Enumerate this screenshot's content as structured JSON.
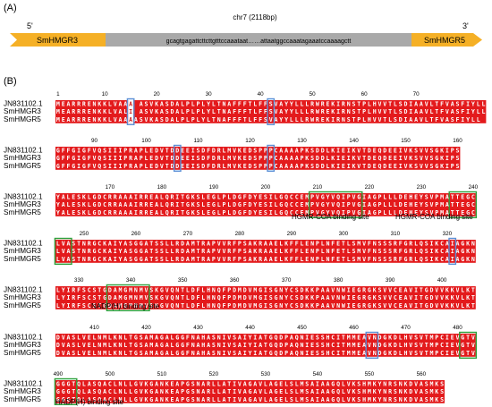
{
  "panel_a": {
    "label": "(A)",
    "five_prime": "5'",
    "three_prime": "3'",
    "gene_left": "SmHMGR3",
    "gene_right": "SmHMGR5",
    "chromosome": "chr7 (2118bp)",
    "sequence": "gcagtgagattcttcttgtttccaaataat……attaatggccaaatagaaatccaaaagctt",
    "colors": {
      "gene_arrow": "#f5b026",
      "spacer": "#a9a9a9"
    }
  },
  "panel_b": {
    "label": "(B)",
    "colors": {
      "conserved_bg": "#e31a1c",
      "conserved_text": "#ffffff",
      "variant_text": "#cc1a1a",
      "box_blue": "#5b8fd6",
      "box_green": "#2e9e3a"
    },
    "blocks": [
      {
        "ticks": [
          [
            1,
            1
          ],
          [
            10,
            10
          ],
          [
            20,
            20
          ],
          [
            30,
            30
          ],
          [
            40,
            40
          ],
          [
            50,
            50
          ],
          [
            60,
            60
          ],
          [
            70,
            70
          ]
        ],
        "names": [
          "JN831102.1",
          "SmHMGR3",
          "SmHMGR5"
        ],
        "seqs": [
          "MEARRRENKKLVAAA ASVKASDALPLPLYLTNAFFFTLFFSVAYYLLLRWREKIRNSTPLHVVTLSDIAAVLTFVASFIYLL",
          "MEARRRENKKLVALI ASVKASDALPLPLYLTNAFFFTLFFSVAYYLLLRWREKIRNSTPLHVVTLSDIAAVLTFVASFIYLL",
          "MEARRRENKKLVAAAASVKASDALPLPLYLTNAFFFTLFFSVAYYLLLRWREKIRNSTPLHVVTLSDIAAVLTFVASFIYLL"
        ],
        "variants": [
          14
        ],
        "blue": [
          [
            14,
            14
          ],
          [
            41,
            41
          ]
        ],
        "green": []
      },
      {
        "ticks": [
          [
            8,
            90
          ],
          [
            18,
            100
          ],
          [
            28,
            110
          ],
          [
            38,
            120
          ],
          [
            48,
            130
          ],
          [
            58,
            140
          ],
          [
            68,
            150
          ],
          [
            78,
            160
          ]
        ],
        "names": [
          "JN831102.1",
          "SmHMGR3",
          "SmHMGR5"
        ],
        "seqs": [
          "GFFGIGFVQSIIIPRAPLEDVTDDEEISDFDRLMVKEDSPPPCAAAAPKSDDLKIEIKVTDEQDEEIVKSVVSGKIPS",
          "GFFGIGFVQSIIIPRAPLEDVTDDEEISDFDRLMVKEDSPPPCAAAAPKSDDLKIEIKVTDEQDEEIVKSVVSGKIPS",
          "GFFGIGFVQSIIIPRAPLEDVTDDEEISDFDRLMVKEDSPPPCAAAAPKSDDLKIEIKVTDEQDEEIVKSVVSGKIPS"
        ],
        "variants": [],
        "blue": [
          [
            23,
            23
          ],
          [
            41,
            41
          ]
        ],
        "green": []
      },
      {
        "ticks": [
          [
            11,
            170
          ],
          [
            21,
            180
          ],
          [
            31,
            190
          ],
          [
            41,
            200
          ],
          [
            51,
            210
          ],
          [
            61,
            220
          ],
          [
            71,
            230
          ],
          [
            81,
            240
          ]
        ],
        "names": [
          "JN831102.1",
          "SmHMGR3",
          "SmHMGR5"
        ],
        "seqs": [
          "YALESKLGDCRRAAAIRREALQRITGKSLEGLPLDGFDYESILGQCCEMPVGYVQIPVGIAGPLLLDEHEYSVPMATTEGC",
          "YALESKLGDCRRAAAIRREALQRITGKSLEGLPLDGFDYESILGQCCEMPVGYVQIPVGIAGPLLLDEHEYSVPMATTEGC",
          "YALESKLGDCRRAAAIRREALQRITGKSLEGLPLDGFDYESILGQCCEMPVGYVQIPVGIAGPLLLDEHEYSVPMATTEGC"
        ],
        "variants": [],
        "blue": [],
        "green": [
          [
            49,
            58
          ],
          [
            76,
            80
          ]
        ]
      },
      {
        "ticks": [
          [
            6,
            250
          ],
          [
            16,
            260
          ],
          [
            26,
            270
          ],
          [
            36,
            280
          ],
          [
            46,
            290
          ],
          [
            56,
            300
          ],
          [
            66,
            310
          ],
          [
            76,
            320
          ]
        ],
        "names": [
          "JN831102.1",
          "SmHMGR3",
          "SmHMGR5"
        ],
        "seqs": [
          "LVASTNRGCKAIYASGGATSSLLRDAMTRAPVVRFPSAKRAAELKFFLENPLNFETLSMVFNSSSRFGRLQSIKCAIAGKN",
          "LVASTNRGCKAIYASGGATSSLLRDAMTRAPVVRFPSAKRAAELKFFLENPLNFETLSMVFNSSSRFGRLQSIKCAIAGKN",
          "LVASTNRGCKAIYASGGATSSLLRDAMTRAPVVRFPSAKRAAELKFFLENPLNFETLSMVFNSSSRFGRLQSIKCAIAGKN"
        ],
        "variants": [],
        "blue": [
          [
            76,
            76
          ]
        ],
        "green": [
          [
            0,
            2
          ]
        ]
      },
      {
        "ticks": [
          [
            5,
            330
          ],
          [
            15,
            340
          ],
          [
            25,
            350
          ],
          [
            35,
            360
          ],
          [
            45,
            370
          ],
          [
            55,
            380
          ],
          [
            65,
            390
          ],
          [
            75,
            400
          ]
        ],
        "names": [
          "JN831102.1",
          "SmHMGR3",
          "SmHMGR5"
        ],
        "seqs": [
          "LYIRFSCSTGDAMGMNMVSKGVQNTLDFLHNQFPDMDVMGISGNYCSDKKPAAVNWIEGRGKSVVCEAVITGDVVKKVLKT",
          "LYIRFSCSTGDAMGMNMVSKGVQNTLDFLHNQFPDMDVMGISGNYCSDKKPAAVNWIEGRGKSVVCEAVITGDVVKKVLKT",
          "LYIRFSCSTGDAMGMNMVSKGVQNTLDFLHNQFPDMDVMGISGNYCSDKKPAAVNWIEGRGKSVVCEAVITGDVVKKVLKT"
        ],
        "variants": [],
        "blue": [],
        "green": [
          [
            10,
            17
          ]
        ]
      },
      {
        "ticks": [
          [
            8,
            410
          ],
          [
            18,
            420
          ],
          [
            28,
            430
          ],
          [
            38,
            440
          ],
          [
            48,
            450
          ],
          [
            58,
            460
          ],
          [
            68,
            470
          ],
          [
            78,
            480
          ]
        ],
        "names": [
          "JN831102.1",
          "SmHMGR3",
          "SmHMGR5"
        ],
        "seqs": [
          "DVASLVELNMLKNLTGSAMAGALGGFNAHASNIVSAIYIATGQDPAQNIESSHCITMMEAVNDGKDLHVSVTMPCIEVGTV",
          "DVASLVELNMLKNLTGSAMAGALGGFNAHASNIVSAIYIATGQDPAQNIESSHCITMMEAVNDGKDLHVSVTMPCIEVGTV",
          "DVASLVELNMLKNLTGSAMAGALGGFNAHASNIVSAIYIATGQDPAQNIESSHCITMMEAVNDGKDLHVSVTMPCIEVGTV"
        ],
        "variants": [],
        "blue": [
          [
            60,
            61
          ]
        ],
        "green": [
          [
            78,
            80
          ]
        ]
      },
      {
        "ticks": [
          [
            1,
            490
          ],
          [
            11,
            500
          ],
          [
            21,
            510
          ],
          [
            31,
            520
          ],
          [
            41,
            530
          ],
          [
            51,
            540
          ],
          [
            61,
            550
          ],
          [
            71,
            560
          ]
        ],
        "names": [
          "JN831102.1",
          "SmHMGR3",
          "SmHMGR5"
        ],
        "seqs": [
          "GGGTQLASQACLNLLGVKGANKEAPGSNARLLATIVAGAVLAGELSLMSAIAAGQLVKSHMKYNRSNKDVASMKS",
          "GGGTQLASQACLNLLGVKGANKEAPGSNARLLATIVAGAVLAGELSLMSAIAAGQLVKSHMKYNRSNKDVASMKS",
          "GGGTQLASQACLNLLGVKGANKEAPGSNARLLATIVAGAVLAGELSLMSAIAAGQLVKSHMKYNRSNKDVASMKS"
        ],
        "variants": [],
        "blue": [],
        "green": [
          [
            0,
            3
          ]
        ]
      }
    ],
    "annotations": {
      "hmgr_coa_1": "HGMR-COA binding site",
      "hmgr_coa_2": "HGMR-COA binding site",
      "nadph": "NADP(H) binding site",
      "hadph": "HADP(H) binding site"
    }
  }
}
